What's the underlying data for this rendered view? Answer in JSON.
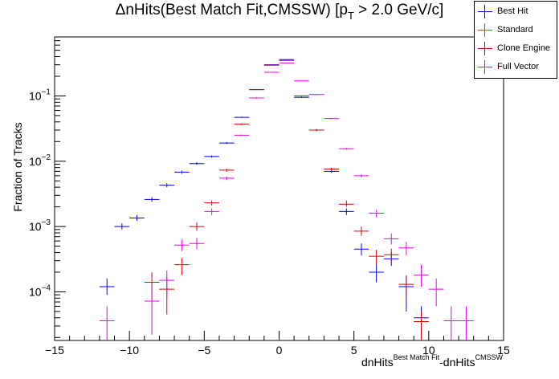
{
  "chart_data": {
    "type": "scatter",
    "title": "ΔnHits(Best Match Fit,CMSSW) [p",
    "title_sub": "T",
    "title_tail": " > 2.0 GeV/c]",
    "ylabel": "Fraction of Tracks",
    "xlabel": {
      "base1": "dnHits",
      "sup1": "Best Match Fit",
      "base2": "-dnHits",
      "sup2": "CMSSW"
    },
    "xlim": [
      -15,
      15
    ],
    "ylim": [
      1.8e-05,
      0.8
    ],
    "yscale": "log",
    "grid": false,
    "legend_position": "top-right",
    "x_ticks": [
      -15,
      -10,
      -5,
      0,
      5,
      10,
      15
    ],
    "y_ticks": [
      {
        "value": 0.0001,
        "mantissa": "10",
        "exp": "−4"
      },
      {
        "value": 0.001,
        "mantissa": "10",
        "exp": "−3"
      },
      {
        "value": 0.01,
        "mantissa": "10",
        "exp": "−2"
      },
      {
        "value": 0.1,
        "mantissa": "10",
        "exp": "−1"
      }
    ],
    "series": [
      {
        "name": "Best Hit",
        "color": "#0000ff",
        "points": [
          {
            "x": -11.5,
            "y": 0.00012,
            "lo": 9e-05,
            "hi": 0.00016
          },
          {
            "x": -10.5,
            "y": 0.001,
            "lo": 0.0009,
            "hi": 0.00112
          },
          {
            "x": -9.5,
            "y": 0.00135,
            "lo": 0.00122,
            "hi": 0.0015
          },
          {
            "x": -8.5,
            "y": 0.0026,
            "lo": 0.0024,
            "hi": 0.0028
          },
          {
            "x": -7.5,
            "y": 0.0043,
            "lo": 0.004,
            "hi": 0.0046
          },
          {
            "x": -6.5,
            "y": 0.0068,
            "lo": 0.0064,
            "hi": 0.0072
          },
          {
            "x": -5.5,
            "y": 0.0092,
            "lo": 0.0088,
            "hi": 0.0097
          },
          {
            "x": -4.5,
            "y": 0.0118,
            "lo": 0.0113,
            "hi": 0.0123
          },
          {
            "x": -3.5,
            "y": 0.019,
            "lo": 0.0184,
            "hi": 0.0196
          },
          {
            "x": -2.5,
            "y": 0.047,
            "lo": 0.046,
            "hi": 0.048
          },
          {
            "x": -1.5,
            "y": 0.125,
            "lo": 0.123,
            "hi": 0.127
          },
          {
            "x": -0.5,
            "y": 0.3,
            "lo": 0.297,
            "hi": 0.303
          },
          {
            "x": 0.5,
            "y": 0.36,
            "lo": 0.357,
            "hi": 0.363
          },
          {
            "x": 1.5,
            "y": 0.095,
            "lo": 0.093,
            "hi": 0.097
          },
          {
            "x": 2.5,
            "y": 0.03,
            "lo": 0.029,
            "hi": 0.031
          },
          {
            "x": 3.5,
            "y": 0.007,
            "lo": 0.0066,
            "hi": 0.0074
          },
          {
            "x": 4.5,
            "y": 0.0017,
            "lo": 0.0015,
            "hi": 0.0019
          },
          {
            "x": 5.5,
            "y": 0.00045,
            "lo": 0.00036,
            "hi": 0.00055
          },
          {
            "x": 6.5,
            "y": 0.0002,
            "lo": 0.00014,
            "hi": 0.00027
          },
          {
            "x": 7.5,
            "y": 0.00032,
            "lo": 0.00025,
            "hi": 0.0004
          },
          {
            "x": 8.5,
            "y": 0.00012,
            "lo": 5e-05,
            "hi": 0.00017
          },
          {
            "x": 9.5,
            "y": 4e-05,
            "lo": 1.8e-05,
            "hi": 6e-05
          }
        ]
      },
      {
        "name": "Standard",
        "color": "#00aa00",
        "points": []
      },
      {
        "name": "Clone Engine",
        "color": "#dd0000",
        "points": [
          {
            "x": -8.5,
            "y": 0.00014,
            "lo": 7.5e-05,
            "hi": 0.0002
          },
          {
            "x": -7.5,
            "y": 0.00011,
            "lo": 4.5e-05,
            "hi": 0.00017
          },
          {
            "x": -6.5,
            "y": 0.00026,
            "lo": 0.00018,
            "hi": 0.00033
          },
          {
            "x": -5.5,
            "y": 0.001,
            "lo": 0.00086,
            "hi": 0.00116
          },
          {
            "x": -4.5,
            "y": 0.0023,
            "lo": 0.0021,
            "hi": 0.0025
          },
          {
            "x": -3.5,
            "y": 0.0073,
            "lo": 0.0069,
            "hi": 0.0077
          },
          {
            "x": -2.5,
            "y": 0.037,
            "lo": 0.036,
            "hi": 0.038
          },
          {
            "x": -1.5,
            "y": 0.125,
            "lo": 0.123,
            "hi": 0.127
          },
          {
            "x": -0.5,
            "y": 0.295,
            "lo": 0.292,
            "hi": 0.298
          },
          {
            "x": 0.5,
            "y": 0.35,
            "lo": 0.347,
            "hi": 0.353
          },
          {
            "x": 1.5,
            "y": 0.1,
            "lo": 0.098,
            "hi": 0.102
          },
          {
            "x": 2.5,
            "y": 0.03,
            "lo": 0.029,
            "hi": 0.031
          },
          {
            "x": 3.5,
            "y": 0.0076,
            "lo": 0.0072,
            "hi": 0.008
          },
          {
            "x": 4.5,
            "y": 0.0022,
            "lo": 0.002,
            "hi": 0.0025
          },
          {
            "x": 5.5,
            "y": 0.00085,
            "lo": 0.00072,
            "hi": 0.001
          },
          {
            "x": 6.5,
            "y": 0.00035,
            "lo": 0.00026,
            "hi": 0.00044
          },
          {
            "x": 7.5,
            "y": 0.00037,
            "lo": 0.00028,
            "hi": 0.00046
          },
          {
            "x": 8.5,
            "y": 0.00013,
            "lo": 8e-05,
            "hi": 0.00018
          },
          {
            "x": 9.5,
            "y": 3.5e-05,
            "lo": 1.8e-05,
            "hi": 5e-05
          }
        ]
      },
      {
        "name": "Full Vector",
        "color": "#ee00ee",
        "points": [
          {
            "x": -11.5,
            "y": 3.6e-05,
            "lo": 1.8e-05,
            "hi": 6e-05
          },
          {
            "x": -8.5,
            "y": 7.2e-05,
            "lo": 2.2e-05,
            "hi": 0.00013
          },
          {
            "x": -7.5,
            "y": 0.00015,
            "lo": 8e-05,
            "hi": 0.00021
          },
          {
            "x": -6.5,
            "y": 0.00052,
            "lo": 0.00042,
            "hi": 0.00063
          },
          {
            "x": -5.5,
            "y": 0.00055,
            "lo": 0.00045,
            "hi": 0.00067
          },
          {
            "x": -4.5,
            "y": 0.0017,
            "lo": 0.0015,
            "hi": 0.0019
          },
          {
            "x": -3.5,
            "y": 0.0055,
            "lo": 0.0052,
            "hi": 0.0058
          },
          {
            "x": -2.5,
            "y": 0.025,
            "lo": 0.0244,
            "hi": 0.0256
          },
          {
            "x": -1.5,
            "y": 0.093,
            "lo": 0.091,
            "hi": 0.095
          },
          {
            "x": -0.5,
            "y": 0.23,
            "lo": 0.227,
            "hi": 0.233
          },
          {
            "x": 0.5,
            "y": 0.32,
            "lo": 0.317,
            "hi": 0.323
          },
          {
            "x": 1.5,
            "y": 0.17,
            "lo": 0.168,
            "hi": 0.172
          },
          {
            "x": 2.5,
            "y": 0.105,
            "lo": 0.103,
            "hi": 0.107
          },
          {
            "x": 3.5,
            "y": 0.045,
            "lo": 0.044,
            "hi": 0.046
          },
          {
            "x": 4.5,
            "y": 0.0155,
            "lo": 0.015,
            "hi": 0.016
          },
          {
            "x": 5.5,
            "y": 0.006,
            "lo": 0.0057,
            "hi": 0.0063
          },
          {
            "x": 6.5,
            "y": 0.0016,
            "lo": 0.0014,
            "hi": 0.0018
          },
          {
            "x": 7.5,
            "y": 0.00065,
            "lo": 0.00053,
            "hi": 0.00078
          },
          {
            "x": 8.5,
            "y": 0.00047,
            "lo": 0.00036,
            "hi": 0.00058
          },
          {
            "x": 9.5,
            "y": 0.00018,
            "lo": 0.00012,
            "hi": 0.00026
          },
          {
            "x": 10.5,
            "y": 0.00011,
            "lo": 6e-05,
            "hi": 0.00016
          },
          {
            "x": 11.5,
            "y": 3.6e-05,
            "lo": 1.8e-05,
            "hi": 6e-05
          },
          {
            "x": 12.5,
            "y": 3.6e-05,
            "lo": 1.8e-05,
            "hi": 6e-05
          }
        ]
      }
    ]
  }
}
